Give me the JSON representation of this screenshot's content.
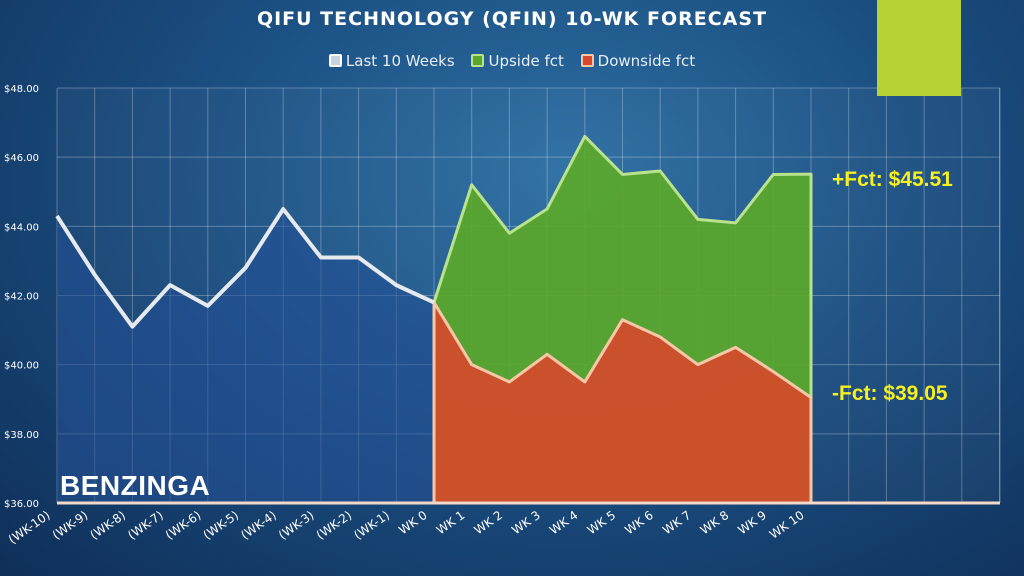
{
  "brand": "BENZINGA",
  "colors": {
    "accent_bar": "#b5d334",
    "actual_line": "#e6e9ee",
    "upside_fill": "#5aa82a",
    "upside_line": "#b9e28c",
    "downside_fill": "#d7482a",
    "downside_line": "#f8c7a8",
    "label_yellow": "#f7ef1e"
  },
  "chart_data": {
    "type": "area",
    "title": "QIFU TECHNOLOGY (QFIN) 10-WK FORECAST",
    "categories": [
      "(WK-10)",
      "(WK-9)",
      "(WK-8)",
      "(WK-7)",
      "(WK-6)",
      "(WK-5)",
      "(WK-4)",
      "(WK-3)",
      "(WK-2)",
      "(WK-1)",
      "WK 0",
      "WK 1",
      "WK 2",
      "WK 3",
      "WK 4",
      "WK 5",
      "WK 6",
      "WK 7",
      "WK 8",
      "WK 9",
      "WK 10"
    ],
    "y_ticks": [
      "$36.00",
      "$38.00",
      "$40.00",
      "$42.00",
      "$44.00",
      "$46.00",
      "$48.00"
    ],
    "ylim": [
      36,
      48
    ],
    "grid": true,
    "legend": "top",
    "series": [
      {
        "name": "Last 10 Weeks",
        "values": [
          44.3,
          42.6,
          41.1,
          42.3,
          41.7,
          42.8,
          44.5,
          43.1,
          43.1,
          42.3,
          41.8,
          null,
          null,
          null,
          null,
          null,
          null,
          null,
          null,
          null,
          null
        ]
      },
      {
        "name": "Upside fct",
        "values": [
          null,
          null,
          null,
          null,
          null,
          null,
          null,
          null,
          null,
          null,
          41.8,
          45.2,
          43.8,
          44.5,
          46.6,
          45.5,
          45.6,
          44.2,
          44.1,
          45.5,
          45.51
        ]
      },
      {
        "name": "Downside fct",
        "values": [
          null,
          null,
          null,
          null,
          null,
          null,
          null,
          null,
          null,
          null,
          41.8,
          40.0,
          39.5,
          40.3,
          39.5,
          41.3,
          40.8,
          40.0,
          40.5,
          39.8,
          39.05
        ]
      }
    ],
    "annotations": {
      "upside": "+Fct: $45.51",
      "downside": "-Fct: $39.05"
    }
  }
}
